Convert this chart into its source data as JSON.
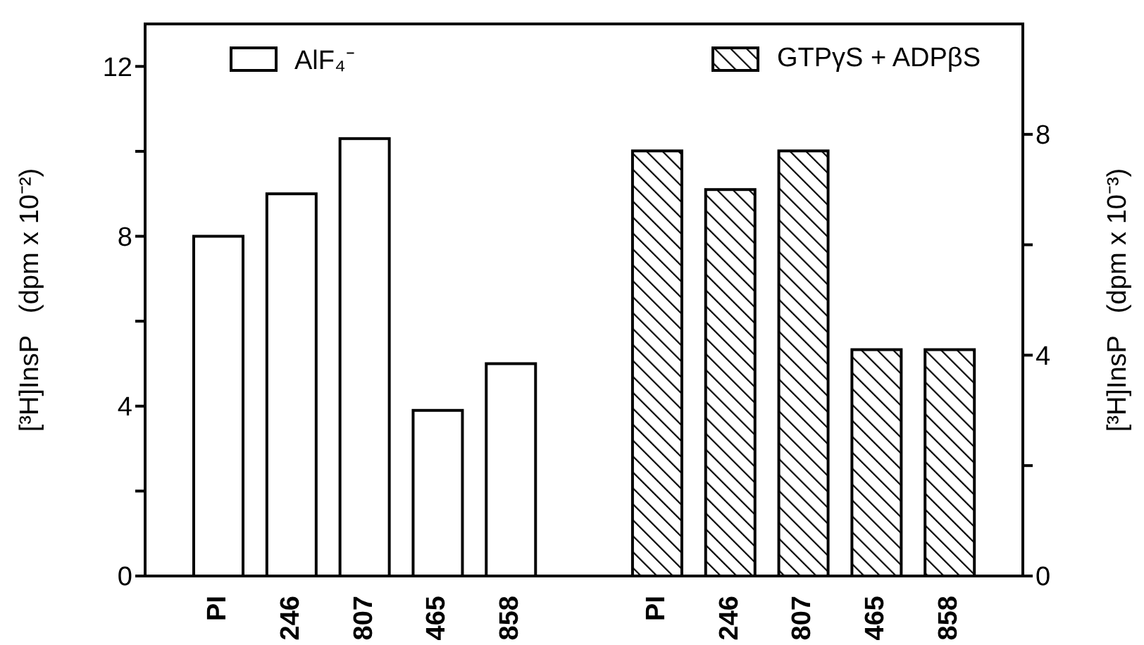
{
  "chart_data": {
    "type": "bar",
    "ylabel": "[³H]InsP   (dpm x 10⁻²)",
    "y2label": "[³H]InsP   (dpm x 10⁻³)",
    "categories": [
      "PI",
      "246",
      "807",
      "465",
      "858",
      null,
      "PI",
      "246",
      "807",
      "465",
      "858"
    ],
    "series": [
      {
        "name": "AlF₄⁻",
        "color": "#ffffff",
        "values": [
          8.0,
          9.0,
          10.3,
          3.9,
          5.0,
          null,
          null,
          null,
          null,
          null,
          null
        ]
      },
      {
        "name": "GTPγS + ADPβS",
        "color": "#000000",
        "axis": "y2",
        "values": [
          null,
          null,
          null,
          null,
          null,
          null,
          7.7,
          7.0,
          7.7,
          4.1,
          4.1
        ]
      }
    ],
    "ylim": [
      0,
      13
    ],
    "yticks": [
      0,
      {
        "value": 2,
        "label": null
      },
      4,
      {
        "value": 6,
        "label": null
      },
      8,
      {
        "value": 10,
        "label": null
      },
      12
    ],
    "y2lim": [
      0,
      10
    ],
    "y2ticks": [
      0,
      {
        "value": 2,
        "label": null
      },
      4,
      {
        "value": 6,
        "label": null
      },
      8
    ],
    "legend": "top",
    "grid": false
  }
}
